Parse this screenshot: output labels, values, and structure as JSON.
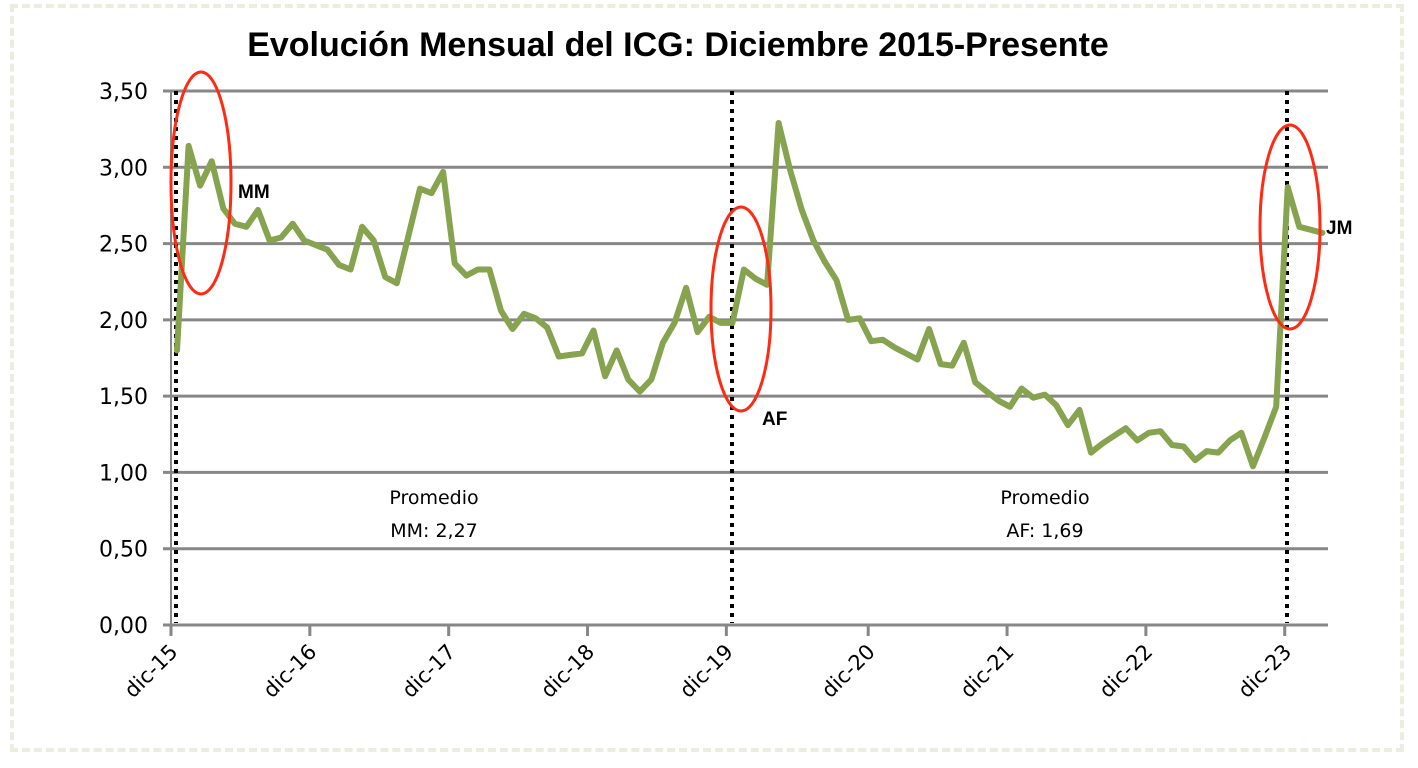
{
  "chart_data": {
    "type": "line",
    "title": "Evolución Mensual del ICG: Diciembre 2015-Presente",
    "xlabel": "",
    "ylabel": "",
    "ylim": [
      0,
      3.5
    ],
    "y_ticks": [
      "0,00",
      "0,50",
      "1,00",
      "1,50",
      "2,00",
      "2,50",
      "3,00",
      "3,50"
    ],
    "y_tick_values": [
      0,
      0.5,
      1,
      1.5,
      2,
      2.5,
      3,
      3.5
    ],
    "x_tick_labels": [
      "dic-15",
      "dic-16",
      "dic-17",
      "dic-18",
      "dic-19",
      "dic-20",
      "dic-21",
      "dic-22",
      "dic-23"
    ],
    "x_start": "dic-15",
    "x_unit": "month",
    "grid": true,
    "legend": "none",
    "series": [
      {
        "name": "ICG",
        "color": "#86a34f",
        "values": [
          1.8,
          3.14,
          2.88,
          3.04,
          2.73,
          2.63,
          2.61,
          2.72,
          2.52,
          2.54,
          2.63,
          2.52,
          2.49,
          2.46,
          2.36,
          2.33,
          2.61,
          2.52,
          2.28,
          2.24,
          2.55,
          2.86,
          2.83,
          2.97,
          2.37,
          2.29,
          2.33,
          2.33,
          2.06,
          1.94,
          2.04,
          2.01,
          1.95,
          1.76,
          1.77,
          1.78,
          1.93,
          1.63,
          1.8,
          1.61,
          1.53,
          1.61,
          1.85,
          1.98,
          2.21,
          1.92,
          2.02,
          1.98,
          1.98,
          2.33,
          2.27,
          2.23,
          3.29,
          2.98,
          2.72,
          2.52,
          2.38,
          2.26,
          2.0,
          2.01,
          1.86,
          1.87,
          1.82,
          1.78,
          1.74,
          1.94,
          1.71,
          1.7,
          1.85,
          1.59,
          1.53,
          1.47,
          1.43,
          1.55,
          1.49,
          1.51,
          1.44,
          1.31,
          1.41,
          1.13,
          1.19,
          1.24,
          1.29,
          1.21,
          1.26,
          1.27,
          1.18,
          1.17,
          1.08,
          1.14,
          1.13,
          1.21,
          1.26,
          1.04,
          1.23,
          1.43,
          2.87,
          2.61,
          2.59,
          2.57
        ]
      }
    ],
    "period_markers": [
      {
        "label": "MM",
        "month_index": 0
      },
      {
        "label": "AF",
        "month_index": 48
      },
      {
        "label": "JM",
        "month_index": 96
      }
    ],
    "highlight_color": "#ff2a12",
    "annotations": {
      "mm_label": "MM",
      "af_label": "AF",
      "jm_label": "JM",
      "avg_mm_line1": "Promedio",
      "avg_mm_line2": "MM: 2,27",
      "avg_af_line1": "Promedio",
      "avg_af_line2": "AF: 1,69"
    }
  }
}
